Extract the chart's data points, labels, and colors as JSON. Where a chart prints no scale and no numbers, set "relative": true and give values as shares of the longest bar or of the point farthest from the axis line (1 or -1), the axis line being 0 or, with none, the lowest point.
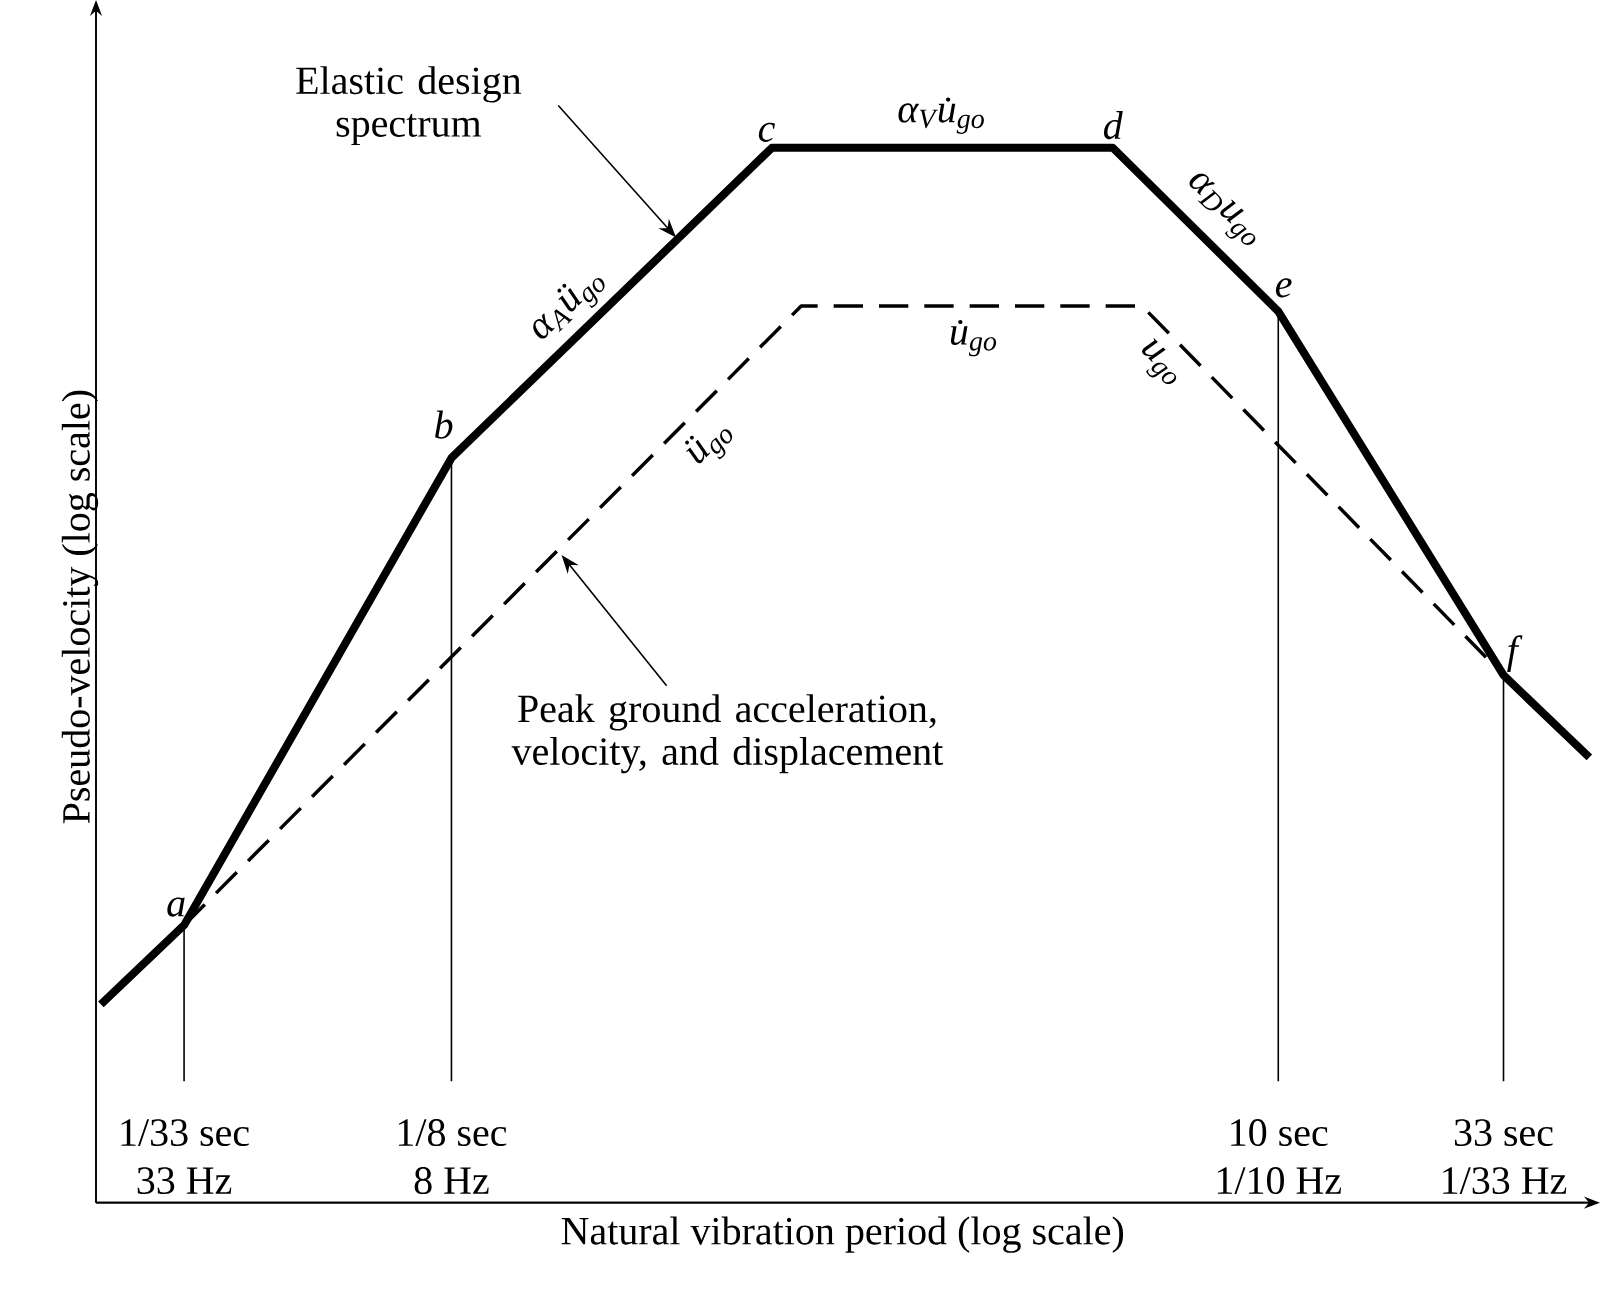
{
  "chart_data": {
    "type": "line",
    "relative": true,
    "log": "x",
    "xlabel": "Natural vibration period (log scale)",
    "ylabel": "Pseudo-velocity (log scale)",
    "xlim": [
      0.019,
      52
    ],
    "xticks": [
      {
        "value": 0.0303,
        "label": "1/33 sec"
      },
      {
        "value": 0.125,
        "label": "1/8 sec"
      },
      {
        "value": 10,
        "label": "10 sec"
      },
      {
        "value": 33,
        "label": "33 sec"
      }
    ],
    "legend": false,
    "series": [
      {
        "name": "Elastic design spectrum",
        "color": "#000000",
        "line_style": "solid",
        "x": [
          0.0195,
          0.0303,
          0.125,
          0.683,
          4.16,
          10,
          33,
          52
        ],
        "values": [
          0.188,
          0.263,
          0.706,
          1,
          1,
          0.845,
          0.5,
          0.422
        ]
      },
      {
        "name": "Peak ground acceleration, velocity, and displacement",
        "color": "#000000",
        "line_style": "dashed",
        "x": [
          0.0303,
          0.798,
          4.86,
          33
        ],
        "values": [
          0.263,
          0.85,
          0.85,
          0.5
        ]
      }
    ],
    "annotations": [
      {
        "text": "a",
        "x": 0.0303,
        "y": 0.263
      },
      {
        "text": "b",
        "x": 0.125,
        "y": 0.706
      },
      {
        "text": "c",
        "x": 0.683,
        "y": 1
      },
      {
        "text": "d",
        "x": 4.16,
        "y": 1
      },
      {
        "text": "e",
        "x": 10,
        "y": 0.845
      },
      {
        "text": "f",
        "x": 33,
        "y": 0.5
      },
      {
        "text": "α$_{A}$ü$_{go}$",
        "x": 0.27,
        "y": 0.837
      },
      {
        "text": "α$_{V}$u̇$_{go}$",
        "x": 1.68,
        "y": 1
      },
      {
        "text": "α$_{D}$u$_{go}$",
        "x": 6.3,
        "y": 0.93
      },
      {
        "text": "ü$_{go}$",
        "x": 0.41,
        "y": 0.731
      },
      {
        "text": "u̇$_{go}$",
        "x": 1.99,
        "y": 0.85
      },
      {
        "text": "u$_{go}$",
        "x": 6.3,
        "y": 0.803
      },
      "33 Hz",
      "8 Hz",
      "1/10 Hz",
      "1/33 Hz"
    ]
  }
}
